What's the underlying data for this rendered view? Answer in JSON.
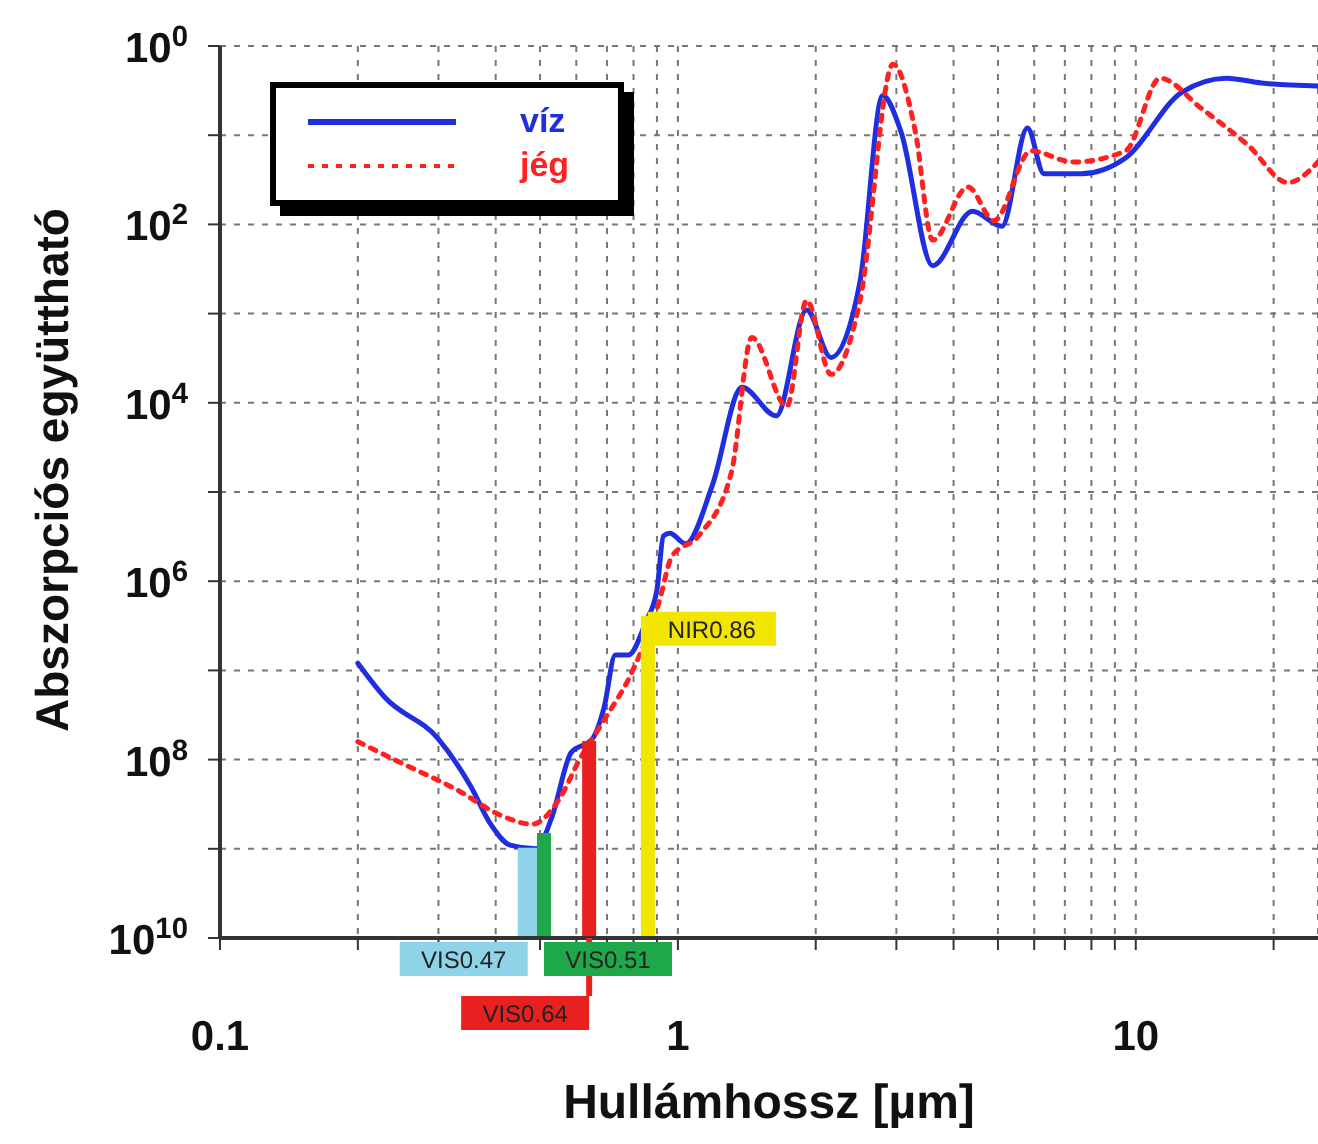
{
  "chart_data": {
    "type": "line",
    "xlabel": "Hullámhossz [µm]",
    "ylabel": "Abszorpciós együttható",
    "log": "xy",
    "grid": true,
    "legend": "top left",
    "xlim": [
      0.1,
      25
    ],
    "ylim": [
      10000000000.0,
      1
    ],
    "xticks": [
      0.1,
      {
        "value": 0.2,
        "label": null
      },
      {
        "value": 0.3,
        "label": null
      },
      {
        "value": 0.4,
        "label": null
      },
      {
        "value": 0.5,
        "label": null
      },
      {
        "value": 0.6,
        "label": null
      },
      {
        "value": 0.7,
        "label": null
      },
      {
        "value": 0.8,
        "label": null
      },
      {
        "value": 0.9,
        "label": null
      },
      1,
      {
        "value": 2,
        "label": null
      },
      {
        "value": 3,
        "label": null
      },
      {
        "value": 4,
        "label": null
      },
      {
        "value": 5,
        "label": null
      },
      {
        "value": 6,
        "label": null
      },
      {
        "value": 7,
        "label": null
      },
      {
        "value": 8,
        "label": null
      },
      {
        "value": 9,
        "label": null
      },
      10,
      {
        "value": 20,
        "label": null
      }
    ],
    "yticks": [
      {
        "value": 10000000000.0,
        "label": "10$^{10}$"
      },
      {
        "value": 1000000000.0,
        "label": null
      },
      {
        "value": 100000000.0,
        "label": "10$^{8}$"
      },
      {
        "value": 10000000.0,
        "label": null
      },
      {
        "value": 1000000.0,
        "label": "10$^{6}$"
      },
      {
        "value": 100000.0,
        "label": null
      },
      {
        "value": 10000.0,
        "label": "10$^{4}$"
      },
      {
        "value": 1000.0,
        "label": null
      },
      {
        "value": 100,
        "label": "10$^{2}$"
      },
      {
        "value": 10,
        "label": null
      },
      {
        "value": 1,
        "label": "10$^{0}$"
      }
    ],
    "series": [
      {
        "name": "víz",
        "color": "#1f2fe0",
        "line_style": "solid",
        "x": [
          0.2,
          0.229,
          0.3,
          0.353,
          0.39,
          0.43,
          0.49,
          0.53,
          0.585,
          0.65,
          0.69,
          0.73,
          0.78,
          0.85,
          0.9,
          0.93,
          0.96,
          1.04,
          1.19,
          1.38,
          1.64,
          1.91,
          2.16,
          2.5,
          2.8,
          3.07,
          3.6,
          4.4,
          5.1,
          5.8,
          6.3,
          7.6,
          9.5,
          12.6,
          15.8,
          18.8,
          25
        ],
        "values": [
          8300000.0,
          20000000.0,
          59000000.0,
          200000000.0,
          530000000.0,
          910000000.0,
          1000000000.0,
          450000000.0,
          83000000.0,
          59000000.0,
          26000000.0,
          6700000.0,
          6700000.0,
          2900000.0,
          1250000.0,
          310000.0,
          290000.0,
          380000.0,
          83000.0,
          6700.0,
          14000.0,
          910,
          3100,
          430,
          3.6,
          9.1,
          290,
          71,
          105,
          8.3,
          27,
          27,
          18,
          3.3,
          2.3,
          2.6,
          2.8
        ]
      },
      {
        "name": "jég",
        "color": "#ff2020",
        "line_style": "dotted",
        "x": [
          0.2,
          0.245,
          0.33,
          0.41,
          0.48,
          0.55,
          0.61,
          0.69,
          0.79,
          0.91,
          0.97,
          1.11,
          1.31,
          1.45,
          1.73,
          1.91,
          2.16,
          2.5,
          2.95,
          3.3,
          3.6,
          4.3,
          4.9,
          5.9,
          7.3,
          9.5,
          11.3,
          13.9,
          17.6,
          21.5,
          25
        ],
        "values": [
          63000000.0,
          105000000.0,
          220000000.0,
          420000000.0,
          530000000.0,
          280000000.0,
          100000000.0,
          36000000.0,
          11000000.0,
          1700000.0,
          530000.0,
          310000.0,
          59000.0,
          1850,
          11000.0,
          710,
          4800,
          710,
          1.6,
          9.1,
          150,
          38,
          91,
          15,
          20,
          15,
          2.3,
          5,
          13,
          34,
          20
        ]
      }
    ],
    "ref_lines": [
      {
        "axis": "x",
        "value": 0.47,
        "label": "VIS0.47",
        "color": "#8fd3e8"
      },
      {
        "axis": "x",
        "value": 0.51,
        "label": "VIS0.51",
        "color": "#1fa84a"
      },
      {
        "axis": "x",
        "value": 0.64,
        "label": "VIS0.64",
        "color": "#e82020"
      },
      {
        "axis": "x",
        "value": 0.86,
        "label": "NIR0.86",
        "color": "#f2e600"
      }
    ]
  }
}
